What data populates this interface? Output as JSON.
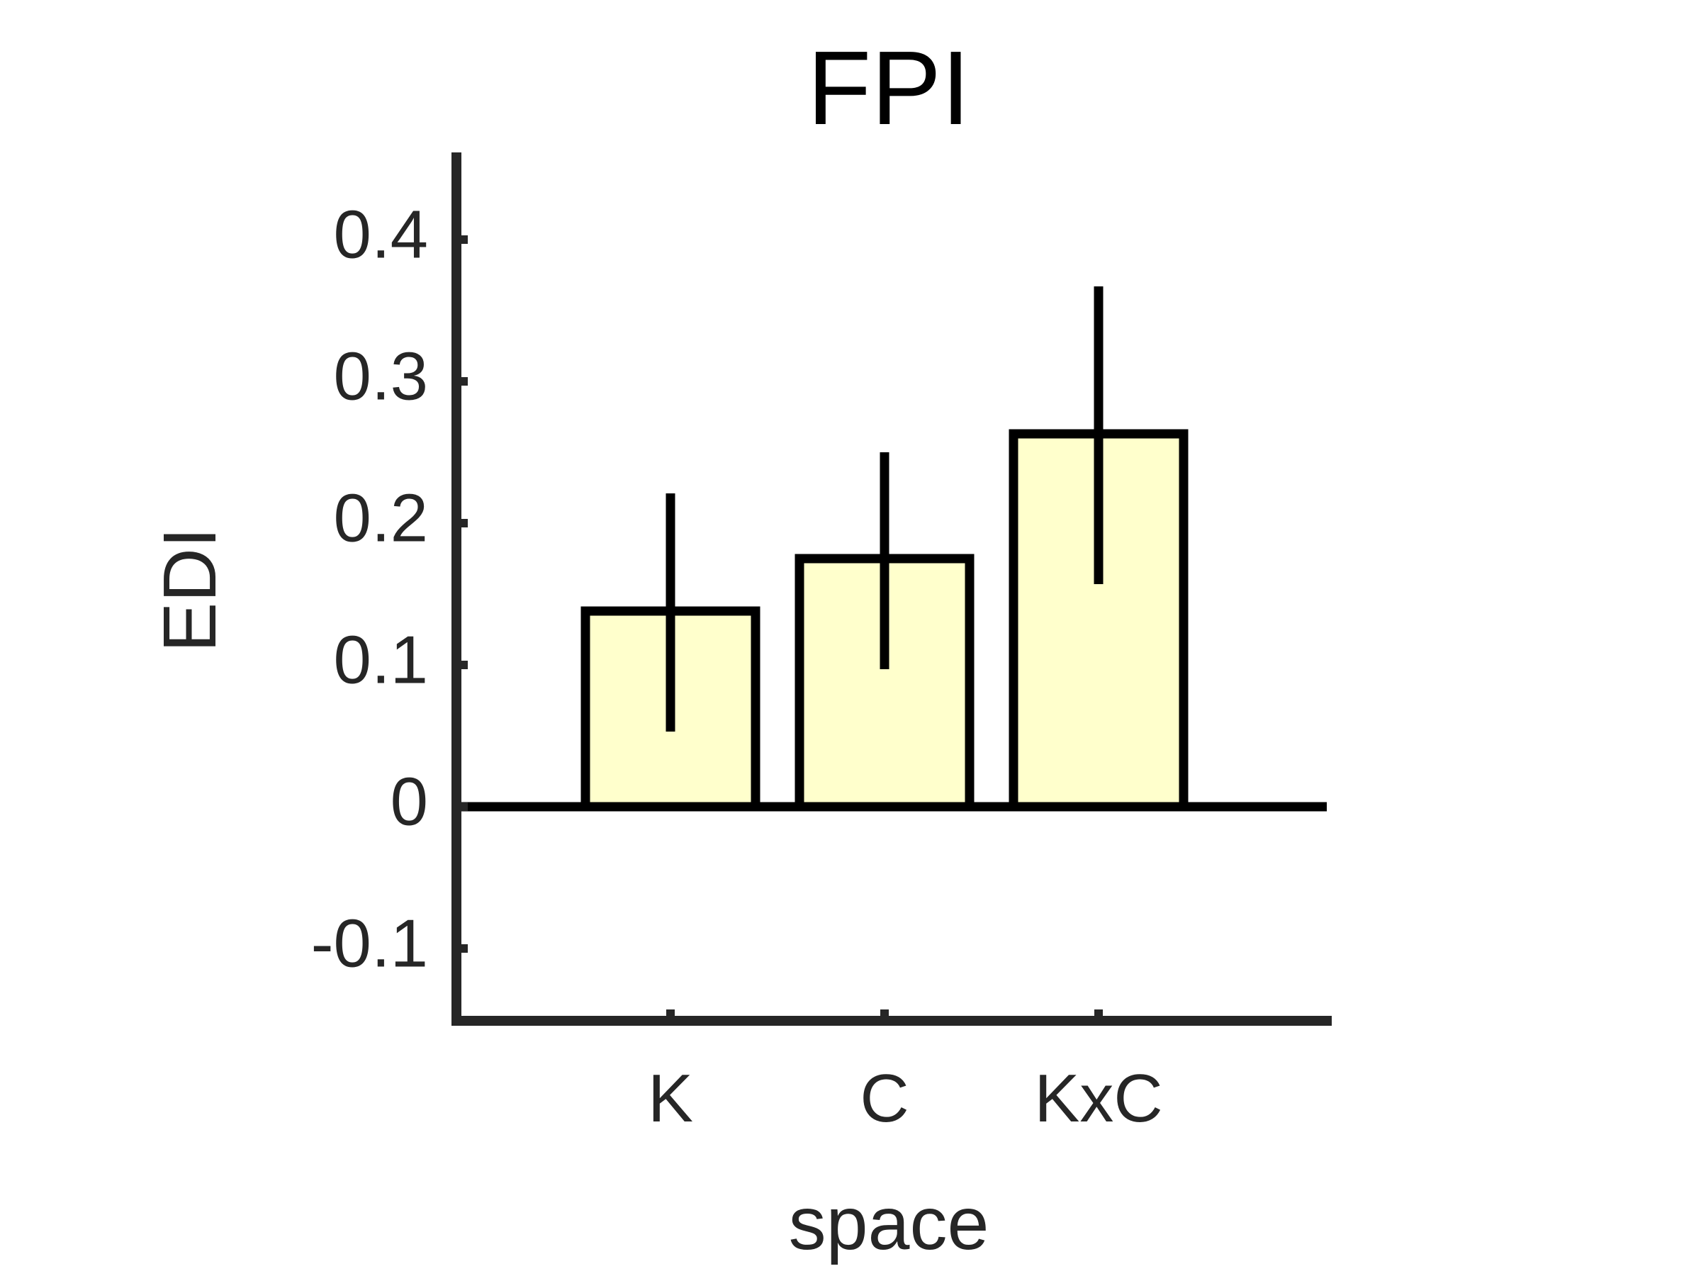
{
  "chart_data": {
    "type": "bar",
    "title": "FPI",
    "xlabel": "space",
    "ylabel": "EDI",
    "categories": [
      "K",
      "C",
      "KxC"
    ],
    "values": [
      0.138,
      0.175,
      0.263
    ],
    "error_low": [
      0.053,
      0.097,
      0.157
    ],
    "error_high": [
      0.221,
      0.25,
      0.367
    ],
    "ylim": [
      -0.15,
      0.45
    ],
    "yticks": [
      -0.1,
      0,
      0.1,
      0.2,
      0.3,
      0.4
    ],
    "ytick_labels": [
      "-0.1",
      "0",
      "0.1",
      "0.2",
      "0.3",
      "0.4"
    ],
    "grid": false,
    "bar_color": "#ffffcc",
    "edge_color": "#000000",
    "axis_color": "#262626"
  }
}
